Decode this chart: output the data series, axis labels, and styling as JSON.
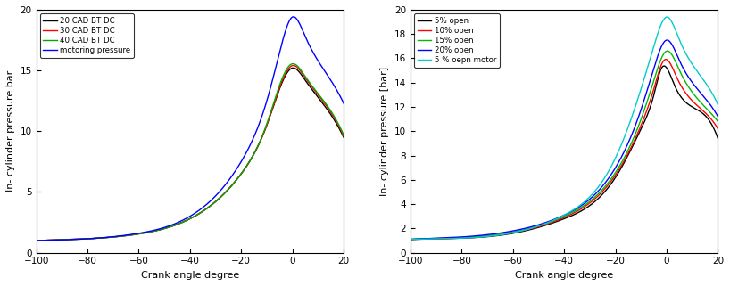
{
  "left": {
    "xlabel": "Crank angle degree",
    "ylabel": "In- cylinder pressure bar",
    "xlim": [
      -100,
      20
    ],
    "ylim": [
      0,
      20
    ],
    "xticks": [
      -100,
      -80,
      -60,
      -40,
      -20,
      0,
      20
    ],
    "yticks": [
      0,
      5,
      10,
      15,
      20
    ],
    "series": [
      {
        "label": "20 CAD BT DC",
        "color": "#000000",
        "knots": [
          -100,
          -80,
          -60,
          -40,
          -20,
          -10,
          -5,
          0,
          5,
          10,
          20
        ],
        "vals": [
          1.0,
          1.15,
          1.55,
          2.8,
          6.5,
          10.5,
          13.5,
          15.2,
          14.2,
          12.8,
          9.5
        ]
      },
      {
        "label": "30 CAD BT DC",
        "color": "#ff0000",
        "knots": [
          -100,
          -80,
          -60,
          -40,
          -20,
          -10,
          -5,
          0,
          5,
          10,
          20
        ],
        "vals": [
          1.0,
          1.15,
          1.55,
          2.8,
          6.5,
          10.5,
          13.6,
          15.4,
          14.4,
          13.0,
          9.6
        ]
      },
      {
        "label": "40 CAD BT DC",
        "color": "#00aa00",
        "knots": [
          -100,
          -80,
          -60,
          -40,
          -20,
          -10,
          -5,
          0,
          5,
          10,
          20
        ],
        "vals": [
          1.0,
          1.15,
          1.55,
          2.8,
          6.5,
          10.6,
          13.8,
          15.55,
          14.5,
          13.1,
          9.7
        ]
      },
      {
        "label": "motoring pressure",
        "color": "#0000ff",
        "knots": [
          -100,
          -80,
          -60,
          -40,
          -20,
          -10,
          -5,
          0,
          5,
          10,
          20
        ],
        "vals": [
          1.0,
          1.15,
          1.6,
          3.0,
          7.5,
          12.5,
          16.5,
          19.4,
          17.8,
          15.8,
          12.3
        ]
      }
    ]
  },
  "right": {
    "xlabel": "Crank angle degree",
    "ylabel": "In- cylinder pressure [bar]",
    "xlim": [
      -100,
      20
    ],
    "ylim": [
      0,
      20
    ],
    "xticks": [
      -100,
      -80,
      -60,
      -40,
      -20,
      0,
      20
    ],
    "yticks": [
      0,
      2,
      4,
      6,
      8,
      10,
      12,
      14,
      16,
      18,
      20
    ],
    "series": [
      {
        "label": "5% open",
        "color": "#000000",
        "knots": [
          -100,
          -80,
          -60,
          -40,
          -20,
          -10,
          -5,
          -2,
          3,
          10,
          20
        ],
        "vals": [
          1.1,
          1.2,
          1.6,
          2.8,
          6.2,
          10.2,
          13.0,
          15.2,
          13.8,
          12.0,
          9.4
        ]
      },
      {
        "label": "10% open",
        "color": "#ff0000",
        "knots": [
          -100,
          -80,
          -60,
          -40,
          -20,
          -10,
          -5,
          -1,
          4,
          10,
          20
        ],
        "vals": [
          1.1,
          1.2,
          1.65,
          2.9,
          6.4,
          10.5,
          13.5,
          15.85,
          14.4,
          12.5,
          10.2
        ]
      },
      {
        "label": "15% open",
        "color": "#00bb00",
        "knots": [
          -100,
          -80,
          -60,
          -40,
          -20,
          -10,
          -5,
          0,
          5,
          10,
          20
        ],
        "vals": [
          1.1,
          1.25,
          1.7,
          3.0,
          6.6,
          11.0,
          14.2,
          16.6,
          15.0,
          13.2,
          10.8
        ]
      },
      {
        "label": "20% open",
        "color": "#0000ff",
        "knots": [
          -100,
          -80,
          -60,
          -40,
          -20,
          -10,
          -5,
          0,
          5,
          10,
          20
        ],
        "vals": [
          1.1,
          1.3,
          1.8,
          3.1,
          7.0,
          11.8,
          15.2,
          17.5,
          15.8,
          14.0,
          11.2
        ]
      },
      {
        "label": "5 % oepn motor",
        "color": "#00cccc",
        "knots": [
          -100,
          -80,
          -60,
          -40,
          -20,
          -10,
          -5,
          0,
          5,
          10,
          20
        ],
        "vals": [
          1.1,
          1.2,
          1.65,
          3.1,
          7.8,
          13.5,
          17.0,
          19.4,
          17.5,
          15.5,
          12.2
        ]
      }
    ]
  }
}
